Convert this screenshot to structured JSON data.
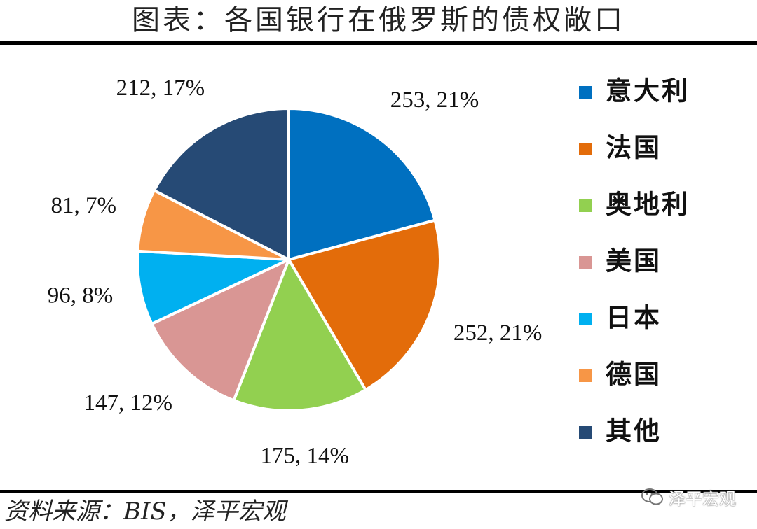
{
  "title": "图表：各国银行在俄罗斯的债权敞口",
  "source": "资料来源：BIS，泽平宏观",
  "watermark": "泽平宏观",
  "chart_data": {
    "type": "pie",
    "title": "图表：各国银行在俄罗斯的债权敞口",
    "legend_position": "right",
    "slices": [
      {
        "name": "意大利",
        "value": 253,
        "percent": 21,
        "label": "253, 21%",
        "color": "#0070C0"
      },
      {
        "name": "法国",
        "value": 252,
        "percent": 21,
        "label": "252, 21%",
        "color": "#E36C0A"
      },
      {
        "name": "奥地利",
        "value": 175,
        "percent": 14,
        "label": "175, 14%",
        "color": "#92D050"
      },
      {
        "name": "美国",
        "value": 147,
        "percent": 12,
        "label": "147, 12%",
        "color": "#D99694"
      },
      {
        "name": "日本",
        "value": 96,
        "percent": 8,
        "label": "96, 8%",
        "color": "#00B0F0"
      },
      {
        "name": "德国",
        "value": 81,
        "percent": 7,
        "label": "81, 7%",
        "color": "#F79646"
      },
      {
        "name": "其他",
        "value": 212,
        "percent": 17,
        "label": "212, 17%",
        "color": "#264A75"
      }
    ]
  }
}
